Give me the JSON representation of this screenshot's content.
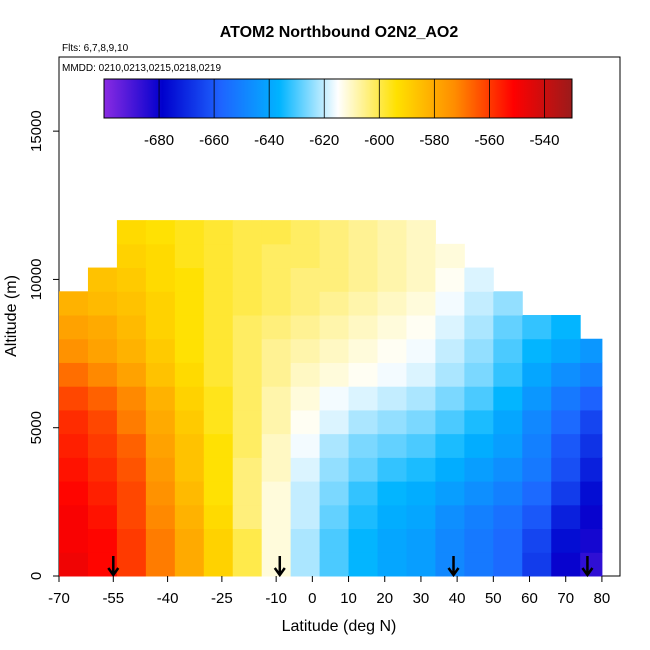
{
  "chart_data": {
    "type": "heatmap",
    "title": "ATOM2 Northbound O2N2_AO2",
    "notes": [
      "Flts: 6,7,8,9,10",
      "MMDD: 0210,0213,0215,0218,0219"
    ],
    "xlabel": "Latitude (deg N)",
    "ylabel": "Altitude (m)",
    "xlim": [
      -70,
      85
    ],
    "ylim": [
      0,
      17500
    ],
    "x_ticks": [
      -70,
      -55,
      -40,
      -25,
      -10,
      0,
      10,
      20,
      30,
      40,
      50,
      60,
      70,
      80
    ],
    "y_ticks": [
      0,
      5000,
      10000,
      15000
    ],
    "colorbar": {
      "position": "top",
      "range": [
        -700,
        -530
      ],
      "ticks": [
        -680,
        -660,
        -640,
        -620,
        -600,
        -580,
        -560,
        -540
      ],
      "colors": [
        "#8a2be2",
        "#0000cd",
        "#1e64ff",
        "#00b4ff",
        "#ffffff",
        "#ffe100",
        "#ff8c00",
        "#ff0000",
        "#9b1b1b"
      ]
    },
    "profiles_at_latitude": [
      -55,
      -9,
      39,
      76
    ],
    "altitude_edges": [
      0,
      800,
      1600,
      2400,
      3200,
      4000,
      4800,
      5600,
      6400,
      7200,
      8000,
      8800,
      9600,
      10400,
      11200,
      12000
    ],
    "latitude_bins": [
      -70,
      -62,
      -54,
      -46,
      -38,
      -30,
      -22,
      -14,
      -6,
      2,
      10,
      18,
      26,
      34,
      42,
      50,
      58,
      66,
      74,
      80
    ],
    "values": [
      [
        -548,
        -552,
        -560,
        -570,
        -580,
        -590,
        -600,
        -612,
        -622,
        -630,
        -636,
        -640,
        -642,
        -648,
        -652,
        -656,
        -666,
        -680,
        -686
      ],
      [
        -550,
        -552,
        -560,
        -570,
        -580,
        -590,
        -600,
        -612,
        -622,
        -630,
        -636,
        -640,
        -642,
        -648,
        -652,
        -656,
        -664,
        -676,
        -682
      ],
      [
        -550,
        -554,
        -562,
        -572,
        -582,
        -592,
        -604,
        -612,
        -620,
        -628,
        -634,
        -638,
        -640,
        -646,
        -650,
        -654,
        -660,
        -672,
        -680
      ],
      [
        -552,
        -556,
        -562,
        -574,
        -584,
        -594,
        -604,
        -612,
        -620,
        -626,
        -632,
        -636,
        -638,
        -642,
        -646,
        -650,
        -656,
        -666,
        -676
      ],
      [
        -554,
        -558,
        -564,
        -576,
        -586,
        -594,
        -604,
        -610,
        -618,
        -624,
        -628,
        -632,
        -634,
        -638,
        -642,
        -646,
        -652,
        -662,
        -672
      ],
      [
        -556,
        -560,
        -566,
        -578,
        -586,
        -594,
        -602,
        -610,
        -616,
        -622,
        -626,
        -628,
        -630,
        -634,
        -638,
        -642,
        -650,
        -660,
        -668
      ],
      [
        -558,
        -562,
        -570,
        -580,
        -588,
        -596,
        -602,
        -608,
        -614,
        -618,
        -622,
        -624,
        -626,
        -630,
        -634,
        -640,
        -648,
        -656,
        -664
      ],
      [
        -562,
        -566,
        -572,
        -582,
        -590,
        -596,
        -602,
        -608,
        -612,
        -616,
        -618,
        -620,
        -622,
        -626,
        -630,
        -636,
        -644,
        -652,
        -658
      ],
      [
        -568,
        -572,
        -578,
        -586,
        -592,
        -598,
        -602,
        -606,
        -610,
        -612,
        -614,
        -616,
        -618,
        -622,
        -626,
        -632,
        -640,
        -646,
        -650
      ],
      [
        -574,
        -578,
        -582,
        -588,
        -594,
        -598,
        -602,
        -606,
        -608,
        -610,
        -612,
        -614,
        -616,
        -620,
        -624,
        -630,
        -636,
        -640,
        -644
      ],
      [
        -578,
        -580,
        -584,
        -590,
        -594,
        -598,
        -602,
        -604,
        -606,
        -608,
        -610,
        -612,
        -614,
        -618,
        -622,
        -628,
        -632,
        -636,
        null
      ],
      [
        -582,
        -584,
        -586,
        -590,
        -594,
        -598,
        -600,
        -602,
        -604,
        -606,
        -608,
        -610,
        -612,
        -616,
        -620,
        -624,
        null,
        null,
        null
      ],
      [
        null,
        -586,
        -588,
        -592,
        -594,
        -598,
        -600,
        -602,
        -604,
        -604,
        -606,
        -608,
        -610,
        -614,
        -618,
        null,
        null,
        null,
        null
      ],
      [
        null,
        null,
        -590,
        -592,
        -596,
        -598,
        -600,
        -602,
        -602,
        -604,
        -606,
        -608,
        -610,
        -612,
        null,
        null,
        null,
        null,
        null
      ],
      [
        null,
        null,
        -592,
        -594,
        -596,
        -598,
        -600,
        -600,
        -602,
        -604,
        -606,
        -608,
        -610,
        null,
        null,
        null,
        null,
        null,
        null
      ]
    ]
  }
}
